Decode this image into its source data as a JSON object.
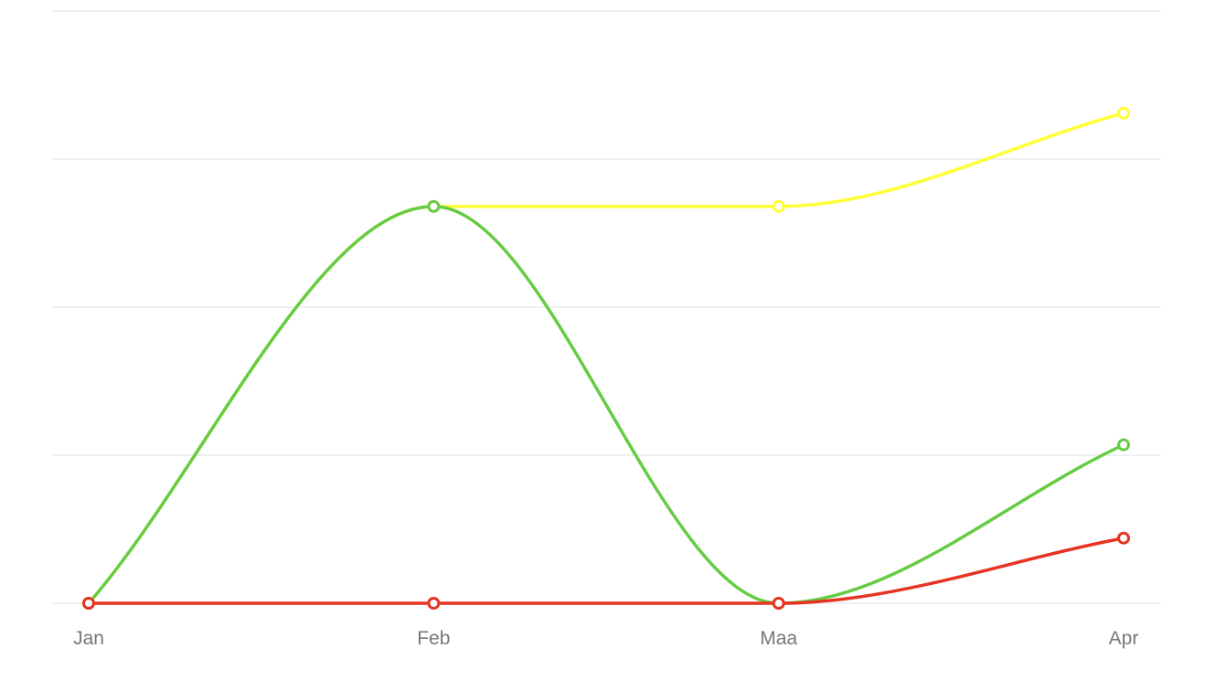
{
  "chart_data": {
    "type": "line",
    "categories": [
      "Jan",
      "Feb",
      "Maa",
      "Apr"
    ],
    "series": [
      {
        "color": "#ffff33",
        "values": [
          0,
          2.68,
          2.68,
          3.31
        ]
      },
      {
        "color": "#66cc44",
        "values": [
          0,
          2.68,
          0,
          1.07
        ]
      },
      {
        "color": "#e63322",
        "values": [
          0,
          0,
          0,
          0.44
        ]
      }
    ],
    "ylim": [
      0,
      4
    ],
    "gridline_values": [
      0,
      1,
      2,
      3,
      4
    ],
    "grid": true,
    "smooth": true,
    "legend": "none"
  }
}
